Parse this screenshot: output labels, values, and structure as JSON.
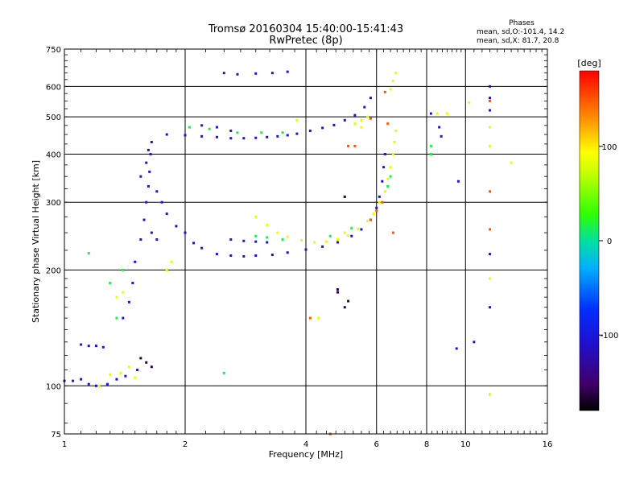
{
  "chart_data": {
    "type": "scatter",
    "title": "Tromsø 20160304 15:40:00-15:41:43",
    "subtitle": "RwPretec (8p)",
    "xlabel": "Frequency [MHz]",
    "ylabel": "Stationary phase Virtual Height [km]",
    "x_scale": "log",
    "y_scale": "log",
    "xlim": [
      1,
      16
    ],
    "ylim": [
      75,
      750
    ],
    "x_ticks": [
      "1",
      "2",
      "4",
      "6",
      "8",
      "10",
      "16"
    ],
    "y_ticks": [
      "75",
      "100",
      "200",
      "300",
      "400",
      "500",
      "600",
      "750"
    ],
    "grid": true,
    "stats": {
      "heading": "Phases",
      "line_o": "mean, sd,O:-101.4, 14.2",
      "line_x": "mean, sd,X:  81.7, 20.8"
    },
    "colorbar": {
      "label": "[deg]",
      "ticks": [
        "100",
        "0",
        "-100"
      ],
      "range": [
        -180,
        180
      ],
      "palette": "rainbow (black-purple-blue-cyan-green-yellow-orange-red)"
    },
    "series": [
      {
        "color_phase": -105,
        "points": [
          [
            1.0,
            103
          ],
          [
            1.05,
            103
          ],
          [
            1.1,
            104
          ],
          [
            1.15,
            101
          ],
          [
            1.2,
            100
          ],
          [
            1.28,
            101
          ],
          [
            1.35,
            104
          ],
          [
            1.42,
            106
          ],
          [
            1.52,
            110
          ],
          [
            1.1,
            128
          ],
          [
            1.15,
            127
          ],
          [
            1.2,
            127
          ],
          [
            1.25,
            126
          ],
          [
            1.4,
            150
          ],
          [
            1.45,
            165
          ],
          [
            1.48,
            185
          ],
          [
            1.5,
            210
          ],
          [
            1.55,
            240
          ],
          [
            1.58,
            270
          ],
          [
            1.6,
            300
          ],
          [
            1.62,
            330
          ],
          [
            1.63,
            360
          ],
          [
            1.64,
            400
          ],
          [
            1.65,
            430
          ],
          [
            1.62,
            410
          ],
          [
            1.6,
            380
          ],
          [
            1.55,
            350
          ],
          [
            1.7,
            320
          ],
          [
            1.75,
            300
          ],
          [
            1.8,
            280
          ],
          [
            1.65,
            250
          ],
          [
            1.7,
            240
          ],
          [
            1.9,
            260
          ],
          [
            2.0,
            250
          ],
          [
            2.1,
            235
          ],
          [
            2.2,
            228
          ],
          [
            2.4,
            220
          ],
          [
            2.6,
            218
          ],
          [
            2.8,
            217
          ],
          [
            3.0,
            218
          ],
          [
            3.3,
            219
          ],
          [
            3.6,
            222
          ],
          [
            4.0,
            226
          ],
          [
            4.4,
            230
          ],
          [
            4.8,
            236
          ],
          [
            5.2,
            245
          ],
          [
            5.5,
            255
          ],
          [
            5.8,
            270
          ],
          [
            6.0,
            290
          ],
          [
            6.1,
            310
          ],
          [
            6.2,
            340
          ],
          [
            6.25,
            370
          ],
          [
            6.3,
            400
          ],
          [
            2.6,
            240
          ],
          [
            2.8,
            238
          ],
          [
            3.0,
            237
          ],
          [
            3.2,
            236
          ],
          [
            1.8,
            450
          ],
          [
            2.0,
            448
          ],
          [
            2.2,
            445
          ],
          [
            2.4,
            443
          ],
          [
            2.6,
            440
          ],
          [
            2.8,
            440
          ],
          [
            3.0,
            441
          ],
          [
            3.2,
            443
          ],
          [
            3.4,
            445
          ],
          [
            3.6,
            448
          ],
          [
            3.8,
            452
          ],
          [
            4.1,
            460
          ],
          [
            4.4,
            468
          ],
          [
            4.7,
            476
          ],
          [
            5.0,
            490
          ],
          [
            5.3,
            505
          ],
          [
            5.6,
            530
          ],
          [
            5.8,
            560
          ],
          [
            2.2,
            475
          ],
          [
            2.4,
            470
          ],
          [
            2.6,
            460
          ],
          [
            2.5,
            650
          ],
          [
            2.7,
            645
          ],
          [
            3.0,
            648
          ],
          [
            3.3,
            650
          ],
          [
            3.6,
            655
          ],
          [
            11.5,
            600
          ],
          [
            11.5,
            560
          ],
          [
            11.5,
            520
          ],
          [
            11.5,
            220
          ],
          [
            11.5,
            160
          ],
          [
            11.5,
            95
          ],
          [
            9.5,
            125
          ],
          [
            10.5,
            130
          ],
          [
            9.6,
            340
          ],
          [
            8.2,
            510
          ],
          [
            8.6,
            470
          ],
          [
            8.7,
            445
          ]
        ]
      },
      {
        "color_phase": 15,
        "points": [
          [
            2.05,
            470
          ],
          [
            2.3,
            465
          ],
          [
            2.7,
            455
          ],
          [
            3.1,
            455
          ],
          [
            3.5,
            455
          ],
          [
            2.5,
            108
          ],
          [
            8.2,
            400
          ],
          [
            8.2,
            420
          ],
          [
            1.35,
            150
          ],
          [
            1.3,
            185
          ],
          [
            1.15,
            221
          ],
          [
            1.4,
            200
          ],
          [
            3.0,
            245
          ],
          [
            3.2,
            243
          ],
          [
            3.5,
            240
          ],
          [
            4.6,
            245
          ],
          [
            5.2,
            257
          ],
          [
            6.4,
            330
          ],
          [
            6.5,
            350
          ]
        ]
      },
      {
        "color_phase": 85,
        "points": [
          [
            1.22,
            100
          ],
          [
            1.3,
            107
          ],
          [
            1.38,
            108
          ],
          [
            1.45,
            112
          ],
          [
            1.5,
            105
          ],
          [
            1.35,
            170
          ],
          [
            1.4,
            175
          ],
          [
            1.8,
            200
          ],
          [
            1.85,
            210
          ],
          [
            3.0,
            275
          ],
          [
            3.2,
            262
          ],
          [
            3.4,
            250
          ],
          [
            3.6,
            244
          ],
          [
            3.9,
            239
          ],
          [
            4.2,
            236
          ],
          [
            4.5,
            237
          ],
          [
            4.8,
            240
          ],
          [
            5.1,
            246
          ],
          [
            5.4,
            256
          ],
          [
            5.7,
            268
          ],
          [
            5.9,
            280
          ],
          [
            6.1,
            300
          ],
          [
            6.3,
            320
          ],
          [
            6.4,
            345
          ],
          [
            6.5,
            370
          ],
          [
            6.6,
            400
          ],
          [
            6.65,
            430
          ],
          [
            6.7,
            460
          ],
          [
            6.5,
            590
          ],
          [
            6.6,
            620
          ],
          [
            6.7,
            650
          ],
          [
            5.3,
            480
          ],
          [
            5.5,
            490
          ],
          [
            3.8,
            490
          ],
          [
            11.5,
            470
          ],
          [
            11.5,
            420
          ],
          [
            11.5,
            190
          ],
          [
            11.5,
            95
          ],
          [
            13.0,
            380
          ],
          [
            4.3,
            150
          ],
          [
            5.0,
            250
          ],
          [
            5.7,
            500
          ],
          [
            8.5,
            510
          ],
          [
            9.0,
            510
          ],
          [
            10.2,
            545
          ],
          [
            5.5,
            470
          ]
        ]
      },
      {
        "color_phase": 150,
        "points": [
          [
            5.8,
            270
          ],
          [
            6.0,
            285
          ],
          [
            6.2,
            300
          ],
          [
            6.4,
            480
          ],
          [
            6.3,
            580
          ],
          [
            5.8,
            495
          ],
          [
            4.1,
            150
          ],
          [
            5.1,
            420
          ],
          [
            5.3,
            420
          ],
          [
            11.5,
            320
          ],
          [
            11.5,
            255
          ],
          [
            11.5,
            550
          ],
          [
            6.6,
            250
          ],
          [
            4.6,
            75
          ]
        ]
      },
      {
        "color_phase": -160,
        "points": [
          [
            1.55,
            118
          ],
          [
            1.6,
            115
          ],
          [
            1.65,
            112
          ],
          [
            4.8,
            175
          ],
          [
            4.8,
            178
          ],
          [
            5.1,
            166
          ],
          [
            5.0,
            310
          ],
          [
            5.0,
            160
          ]
        ]
      }
    ]
  }
}
